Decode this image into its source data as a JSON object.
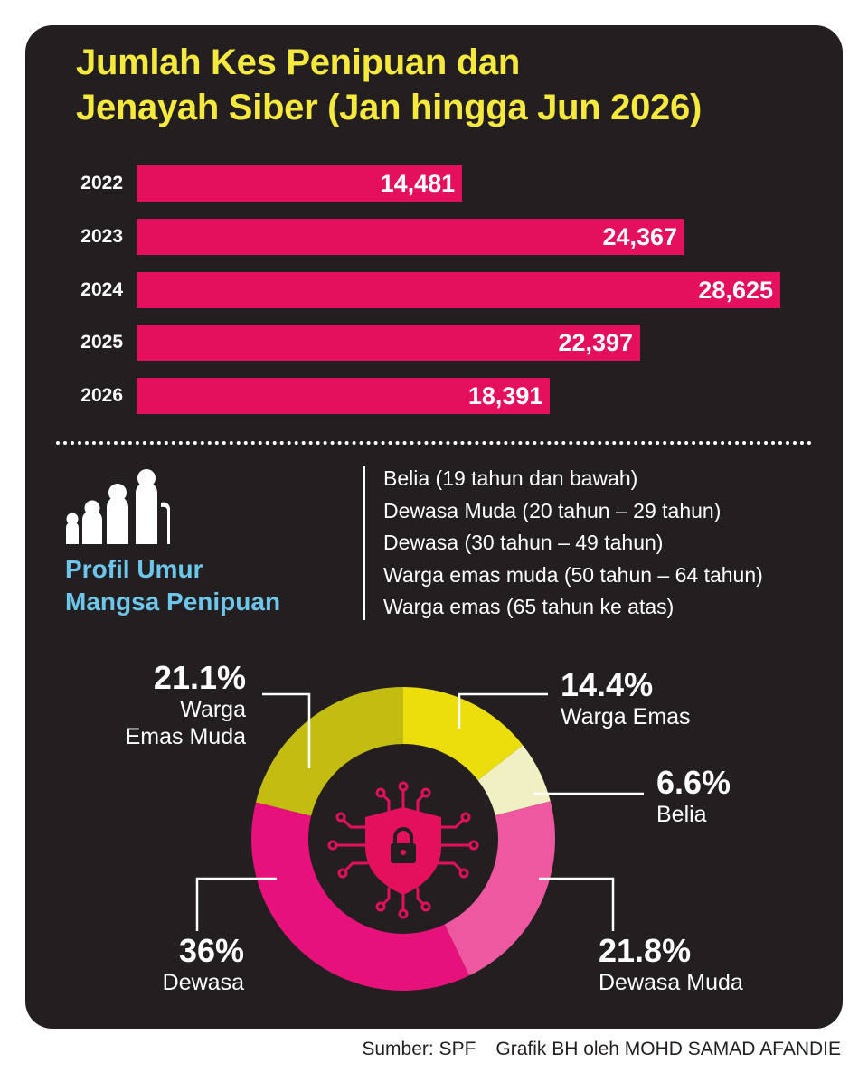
{
  "title": [
    "Jumlah Kes Penipuan dan",
    "Jenayah Siber (Jan hingga Jun 2026)"
  ],
  "chart_data": [
    {
      "type": "bar",
      "orientation": "horizontal",
      "title": "Jumlah Kes Penipuan dan Jenayah Siber (Jan hingga Jun 2026)",
      "categories": [
        "2022",
        "2023",
        "2024",
        "2025",
        "2026"
      ],
      "values": [
        14481,
        24367,
        28625,
        22397,
        18391
      ],
      "value_labels": [
        "14,481",
        "24,367",
        "28,625",
        "22,397",
        "18,391"
      ],
      "xlim": [
        0,
        28625
      ],
      "grid": false,
      "bar_color": "#e4105d"
    },
    {
      "type": "pie",
      "donut": true,
      "title": [
        "Profil Umur",
        "Mangsa Penipuan"
      ],
      "legend": [
        "Belia (19 tahun dan bawah)",
        "Dewasa Muda (20 tahun – 29 tahun)",
        "Dewasa (30 tahun – 49 tahun)",
        "Warga emas muda (50 tahun – 64 tahun)",
        "Warga emas (65 tahun ke atas)"
      ],
      "legend_placement": "top-right",
      "slices": [
        {
          "key": "warga-emas",
          "label": [
            "Warga Emas"
          ],
          "value": 14.4,
          "display": "14.4%",
          "color": "#ecdd0c"
        },
        {
          "key": "belia",
          "label": [
            "Belia"
          ],
          "value": 6.6,
          "display": "6.6%",
          "color": "#f1f0c3"
        },
        {
          "key": "dewasa-muda",
          "label": [
            "Dewasa Muda"
          ],
          "value": 21.8,
          "display": "21.8%",
          "color": "#ee58a1"
        },
        {
          "key": "dewasa",
          "label": [
            "Dewasa"
          ],
          "value": 36.0,
          "display": "36%",
          "color": "#e6117b"
        },
        {
          "key": "warga-emas-muda",
          "label": [
            "Warga",
            "Emas Muda"
          ],
          "value": 21.1,
          "display": "21.1%",
          "color": "#c4bd11"
        }
      ]
    }
  ],
  "source": {
    "text": "Sumber: SPF",
    "credit": "Grafik BH oleh MOHD SAMAD AFANDIE"
  },
  "colors": {
    "background": "#231f20",
    "title": "#f5e93e",
    "bar": "#e4105d",
    "profile_title": "#6ec6ea",
    "icon": "#e4105d"
  },
  "icons": {
    "profile": "elderly-family-icon",
    "center": "cyber-security-shield-lock-icon"
  }
}
